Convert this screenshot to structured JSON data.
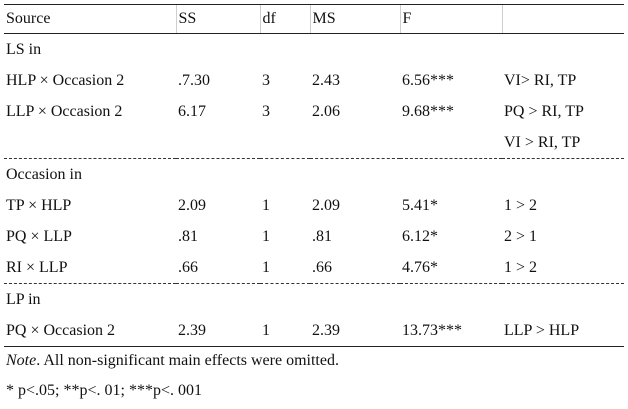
{
  "header": [
    "Source",
    "SS",
    "df",
    "MS",
    "F",
    ""
  ],
  "sections": [
    {
      "title": "LS in",
      "rows": [
        [
          "HLP × Occasion 2",
          ".7.30",
          "3",
          "2.43",
          "6.56***",
          "VI> RI, TP"
        ],
        [
          "LLP × Occasion 2",
          "6.17",
          "3",
          "2.06",
          "9.68***",
          "PQ > RI, TP"
        ],
        [
          "",
          "",
          "",
          "",
          "",
          "VI > RI, TP"
        ]
      ]
    },
    {
      "title": "Occasion in",
      "rows": [
        [
          "TP × HLP",
          "2.09",
          "1",
          "2.09",
          "5.41*",
          "1 > 2"
        ],
        [
          "PQ × LLP",
          ".81",
          "1",
          ".81",
          "6.12*",
          "2 > 1"
        ],
        [
          "RI × LLP",
          ".66",
          "1",
          ".66",
          "4.76*",
          "1 > 2"
        ]
      ]
    },
    {
      "title": "LP in",
      "rows": [
        [
          "PQ × Occasion 2",
          "2.39",
          "1",
          "2.39",
          "13.73***",
          "LLP > HLP"
        ]
      ]
    }
  ],
  "note": {
    "label": "Note",
    "text": ". All non-significant main effects were omitted."
  },
  "significance": "* p<.05; **p<. 01; ***p<. 001"
}
